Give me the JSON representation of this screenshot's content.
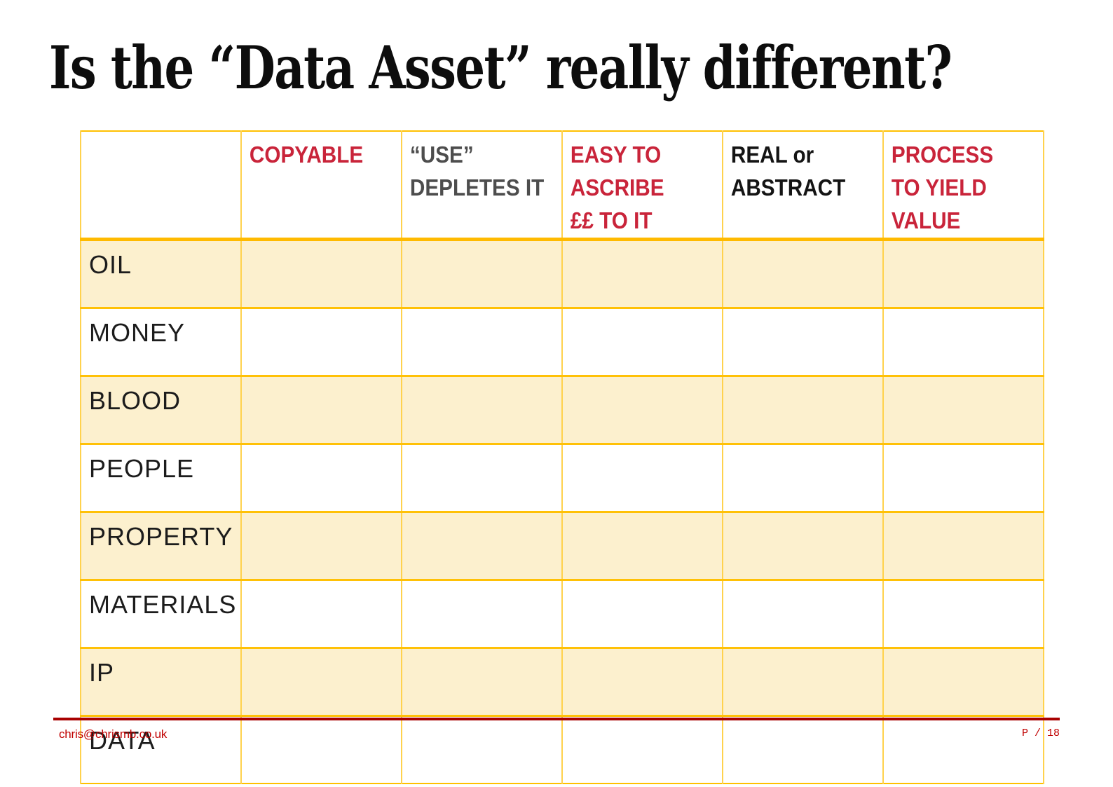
{
  "title": "Is the “Data Asset” really different?",
  "table": {
    "headers": [
      {
        "label": ""
      },
      {
        "label": "COPYABLE"
      },
      {
        "label": "“USE”\nDEPLETES IT"
      },
      {
        "label": "EASY TO\nASCRIBE\n££ TO IT"
      },
      {
        "label": "REAL or\nABSTRACT"
      },
      {
        "label": "PROCESS\nTO YIELD\nVALUE"
      }
    ],
    "row_labels": [
      "OIL",
      "MONEY",
      "BLOOD",
      "PEOPLE",
      "PROPERTY",
      "MATERIALS",
      "IP",
      "DATA"
    ]
  },
  "footer": {
    "email": "chris@chrismb.co.uk",
    "page_indicator": "P / 18"
  },
  "colors": {
    "header_red": "#C9243A",
    "header_gray": "#4D4D4D",
    "header_black": "#141414",
    "band_fill": "#FCF0CE",
    "border_gold": "#FFC000",
    "border_gold_light": "#FFD24D",
    "footer_rule_red": "#A80000",
    "footer_text_red": "#C00000"
  }
}
